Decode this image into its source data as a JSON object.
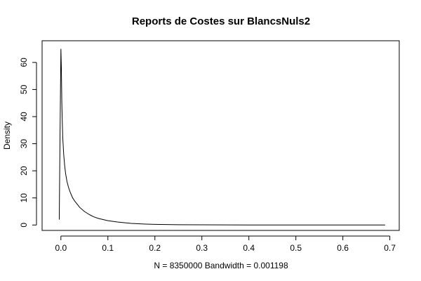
{
  "chart_data": {
    "type": "line",
    "title": "Reports de Costes sur BlancsNuls2",
    "xlabel": "N = 8350000   Bandwidth = 0.001198",
    "ylabel": "Density",
    "xlim": [
      -0.04,
      0.72
    ],
    "ylim": [
      -2,
      68
    ],
    "x_ticks": [
      0.0,
      0.1,
      0.2,
      0.3,
      0.4,
      0.5,
      0.6,
      0.7
    ],
    "x_tick_labels": [
      "0.0",
      "0.1",
      "0.2",
      "0.3",
      "0.4",
      "0.5",
      "0.6",
      "0.7"
    ],
    "y_ticks": [
      0,
      10,
      20,
      30,
      40,
      50,
      60
    ],
    "y_tick_labels": [
      "0",
      "10",
      "20",
      "30",
      "40",
      "50",
      "60"
    ],
    "grid": false,
    "series": [
      {
        "x": [
          -0.0035,
          -0.002,
          0.0,
          0.001,
          0.002,
          0.003,
          0.004,
          0.006,
          0.008,
          0.01,
          0.013,
          0.016,
          0.02,
          0.025,
          0.03,
          0.035,
          0.04,
          0.05,
          0.06,
          0.07,
          0.08,
          0.1,
          0.12,
          0.15,
          0.18,
          0.2,
          0.25,
          0.3,
          0.35,
          0.4,
          0.5,
          0.6,
          0.69
        ],
        "y": [
          2,
          30,
          65,
          58,
          45,
          38,
          32,
          26,
          22,
          19,
          16,
          14,
          12,
          10,
          8.7,
          7.6,
          6.5,
          5,
          3.9,
          3.0,
          2.4,
          1.6,
          1.1,
          0.6,
          0.35,
          0.25,
          0.12,
          0.06,
          0.03,
          0.02,
          0.01,
          0.005,
          0.0
        ]
      }
    ]
  }
}
